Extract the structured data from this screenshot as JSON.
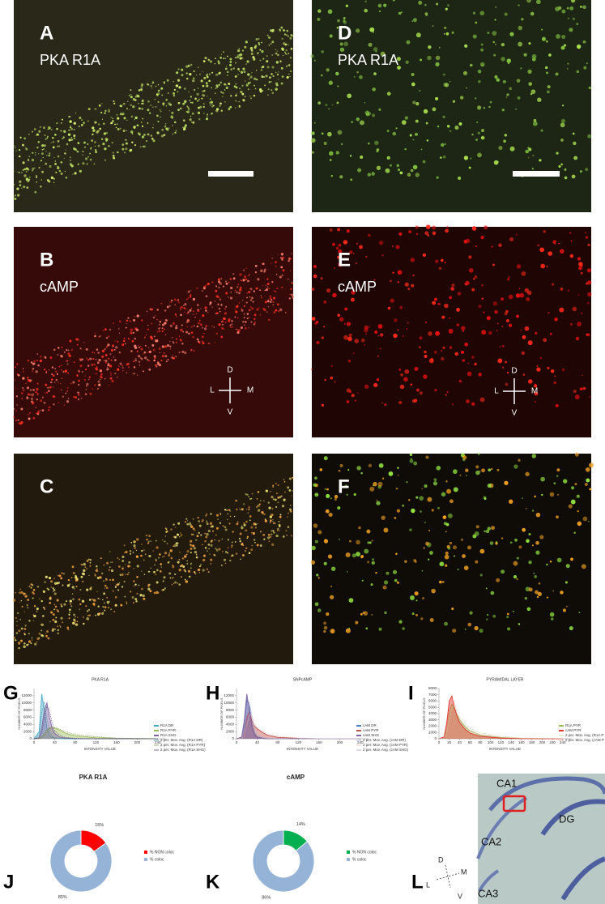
{
  "panels": [
    {
      "letter": "A",
      "label": "PKA R1A"
    },
    {
      "letter": "D",
      "label": "PKA R1A"
    },
    {
      "letter": "B",
      "label": "cAMP",
      "compass": {
        "up": "D",
        "left": "L",
        "right": "M",
        "down": "V"
      }
    },
    {
      "letter": "E",
      "label": "cAMP",
      "compass": {
        "up": "D",
        "left": "L",
        "right": "M",
        "down": "V"
      }
    },
    {
      "letter": "C"
    },
    {
      "letter": "F"
    }
  ],
  "panel_L": {
    "letter": "L",
    "regions": [
      "CA1",
      "DG",
      "CA2",
      "CA3"
    ],
    "compass": {
      "up": "D",
      "left": "L",
      "right": "M",
      "down": "V"
    }
  },
  "chart_data": [
    {
      "type": "line",
      "letter": "G",
      "title": "PKA R1A",
      "x_label": "INTENSITY VALUE",
      "y_label": "NUMBER OF PIXELS",
      "x": [
        0,
        10,
        15,
        20,
        25,
        30,
        35,
        40,
        50,
        60,
        80,
        120,
        160,
        240
      ],
      "xlim": [
        0,
        256
      ],
      "xticks": [
        0,
        40,
        80,
        120,
        160,
        200,
        240
      ],
      "ylim": [
        0,
        14000
      ],
      "yticks": [
        0,
        2000,
        4000,
        6000,
        8000,
        10000,
        12000
      ],
      "series": [
        {
          "name": "R1A DR",
          "color": "#4bacc6",
          "values": [
            0,
            2000,
            12500,
            8000,
            3000,
            1000,
            400,
            200,
            50,
            0,
            0,
            0,
            0,
            0
          ]
        },
        {
          "name": "R1A PYR",
          "color": "#9bbb59",
          "values": [
            0,
            100,
            500,
            1500,
            2500,
            3000,
            3200,
            3000,
            2400,
            1600,
            800,
            300,
            100,
            0
          ]
        },
        {
          "name": "R1A SHG",
          "color": "#8064a2",
          "values": [
            0,
            300,
            3000,
            8000,
            10000,
            6000,
            3000,
            1500,
            500,
            200,
            50,
            0,
            0,
            0
          ]
        },
        {
          "name": "2 per. Mov. Avg. (R1A DR)",
          "color": "#31859c",
          "values": [
            0,
            1000,
            7250,
            10250,
            5500,
            2000,
            700,
            300,
            125,
            25,
            0,
            0,
            0,
            0
          ]
        },
        {
          "name": "2 per. Mov. Avg. (R1A PYR)",
          "color": "#76923c",
          "values": [
            0,
            50,
            300,
            1000,
            2000,
            2750,
            3100,
            3100,
            2700,
            2000,
            1200,
            550,
            200,
            50
          ]
        },
        {
          "name": "2 per. Mov. Avg. (R1A SHG)",
          "color": "#5f497a",
          "values": [
            0,
            150,
            1650,
            5500,
            9000,
            8000,
            4500,
            2250,
            1000,
            350,
            125,
            25,
            0,
            0
          ]
        }
      ]
    },
    {
      "type": "line",
      "letter": "H",
      "title": "SNPcAMP",
      "x_label": "INTENSITY VALUE",
      "y_label": "NUMBER OF PIXELS",
      "x": [
        0,
        10,
        15,
        20,
        25,
        30,
        35,
        40,
        50,
        60,
        80,
        120,
        160,
        240
      ],
      "xlim": [
        0,
        256
      ],
      "xticks": [
        0,
        40,
        80,
        120,
        160,
        200,
        240
      ],
      "ylim": [
        0,
        14000
      ],
      "yticks": [
        0,
        2000,
        4000,
        6000,
        8000,
        10000,
        12000
      ],
      "series": [
        {
          "name": "cAM DR",
          "color": "#4f81bd",
          "values": [
            0,
            300,
            4000,
            11000,
            9000,
            4000,
            1500,
            600,
            200,
            50,
            0,
            0,
            0,
            0
          ]
        },
        {
          "name": "cAM PYR",
          "color": "#c0504d",
          "values": [
            0,
            200,
            1500,
            6000,
            7500,
            5000,
            3500,
            2800,
            1800,
            1000,
            400,
            100,
            0,
            0
          ]
        },
        {
          "name": "cAM SHG",
          "color": "#8064a2",
          "values": [
            0,
            500,
            5000,
            12500,
            8000,
            3000,
            1000,
            400,
            100,
            0,
            0,
            0,
            0,
            0
          ]
        },
        {
          "name": "2 per. Mov. Avg. (cAM DR)",
          "color": "#95b3d7",
          "values": [
            0,
            150,
            2150,
            7500,
            10000,
            6500,
            2750,
            1050,
            400,
            125,
            25,
            0,
            0,
            0
          ]
        },
        {
          "name": "2 per. Mov. Avg. (cAM PYR)",
          "color": "#e6b9b8",
          "values": [
            0,
            100,
            850,
            3750,
            6750,
            6250,
            4250,
            3150,
            2300,
            1400,
            700,
            250,
            50,
            0
          ]
        },
        {
          "name": "2 per. Mov. Avg. (cAM SHG)",
          "color": "#b3a2c7",
          "values": [
            0,
            250,
            2750,
            8750,
            10250,
            5500,
            2000,
            700,
            250,
            50,
            0,
            0,
            0,
            0
          ]
        }
      ]
    },
    {
      "type": "line",
      "letter": "I",
      "title": "PYRAMIDAL LAYER",
      "x_label": "INTENSITY VALUE",
      "y_label": "NUMBER OF PIXELS",
      "x": [
        0,
        10,
        15,
        20,
        25,
        30,
        35,
        40,
        50,
        60,
        80,
        120,
        160,
        240
      ],
      "xlim": [
        0,
        256
      ],
      "xticks": [
        0,
        20,
        40,
        60,
        80,
        100,
        120,
        140,
        160,
        180,
        200,
        220,
        240
      ],
      "ylim": [
        0,
        8000
      ],
      "yticks": [
        0,
        1000,
        2000,
        3000,
        4000,
        5000,
        6000,
        7000,
        8000
      ],
      "series": [
        {
          "name": "R1A PYR",
          "color": "#9bbb59",
          "values": [
            0,
            200,
            1500,
            4500,
            5500,
            4800,
            3800,
            3000,
            2000,
            1300,
            600,
            200,
            50,
            0
          ]
        },
        {
          "name": "cAM PYR",
          "color": "#e0342c",
          "values": [
            0,
            300,
            2500,
            6000,
            6800,
            5000,
            3600,
            2600,
            1600,
            900,
            400,
            100,
            20,
            0
          ]
        },
        {
          "name": "2 per. Mov. Avg. (R1A P",
          "color": "#c3d69b",
          "values": [
            0,
            100,
            850,
            3000,
            5000,
            5150,
            4300,
            3400,
            2500,
            1650,
            950,
            400,
            125,
            25
          ]
        },
        {
          "name": "2 per. Mov. Avg. (cAM P",
          "color": "#f2a19d",
          "values": [
            0,
            150,
            1400,
            4250,
            6400,
            5900,
            4300,
            3100,
            2100,
            1250,
            650,
            250,
            60,
            10
          ]
        }
      ]
    },
    {
      "type": "donut",
      "letter": "J",
      "title": "PKA R1A",
      "categories": [
        "% NON coloc",
        "% coloc"
      ],
      "values": [
        15,
        85
      ],
      "value_labels": [
        "15%",
        "85%"
      ],
      "colors": [
        "#ff0000",
        "#95b3d7"
      ]
    },
    {
      "type": "donut",
      "letter": "K",
      "title": "cAMP",
      "categories": [
        "% NON coloc",
        "% coloc"
      ],
      "values": [
        14,
        86
      ],
      "value_labels": [
        "14%",
        "86%"
      ],
      "colors": [
        "#00b050",
        "#95b3d7"
      ]
    }
  ]
}
